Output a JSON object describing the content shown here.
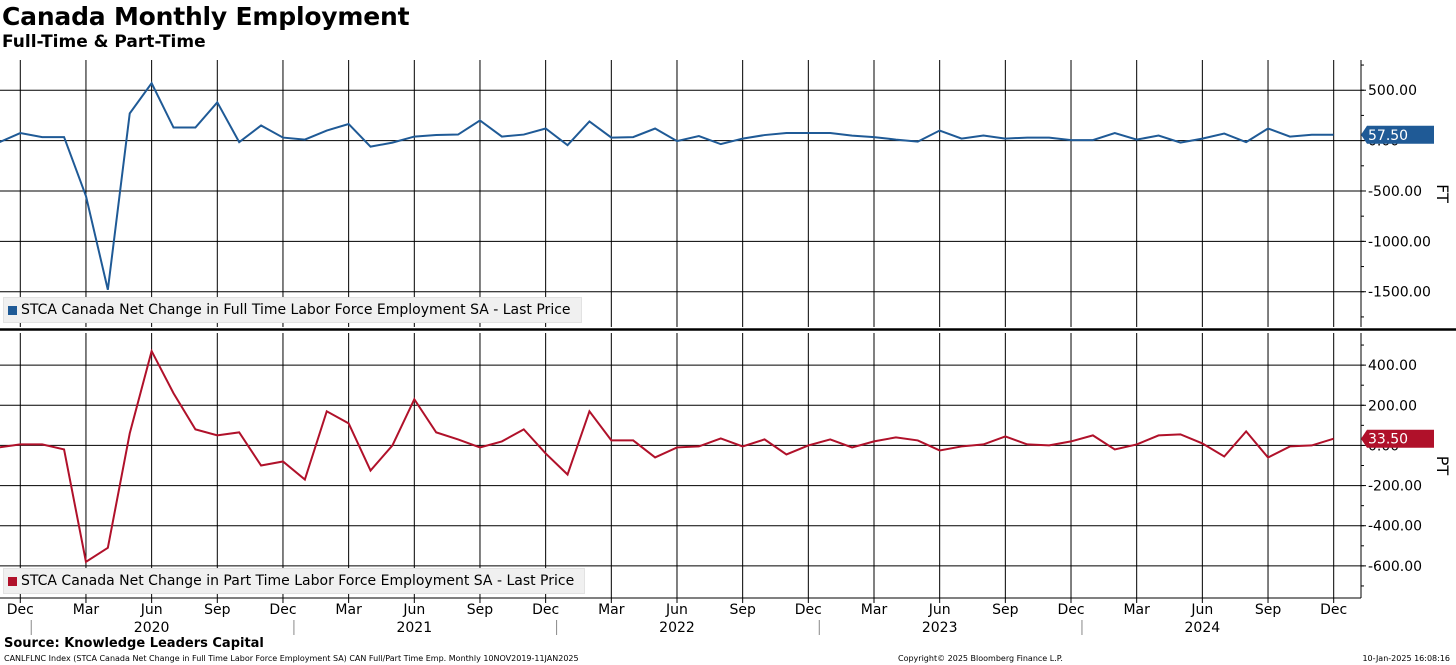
{
  "header": {
    "title": "Canada Monthly Employment",
    "subtitle": "Full-Time & Part-Time"
  },
  "footer": {
    "source": "Source: Knowledge Leaders Capital",
    "index_info": "CANLFLNC Index (STCA Canada Net Change in Full Time Labor Force Employment SA) CAN Full/Part Time Emp.  Monthly 10NOV2019-11JAN2025",
    "copyright": "Copyright© 2025 Bloomberg Finance L.P.",
    "timestamp": "10-Jan-2025 16:08:16"
  },
  "colors": {
    "full_time": "#1f5a96",
    "part_time": "#b0112a"
  },
  "chart_data": {
    "type": "line",
    "x": [
      "2019-11",
      "2019-12",
      "2020-01",
      "2020-02",
      "2020-03",
      "2020-04",
      "2020-05",
      "2020-06",
      "2020-07",
      "2020-08",
      "2020-09",
      "2020-10",
      "2020-11",
      "2020-12",
      "2021-01",
      "2021-02",
      "2021-03",
      "2021-04",
      "2021-05",
      "2021-06",
      "2021-07",
      "2021-08",
      "2021-09",
      "2021-10",
      "2021-11",
      "2021-12",
      "2022-01",
      "2022-02",
      "2022-03",
      "2022-04",
      "2022-05",
      "2022-06",
      "2022-07",
      "2022-08",
      "2022-09",
      "2022-10",
      "2022-11",
      "2022-12",
      "2023-01",
      "2023-02",
      "2023-03",
      "2023-04",
      "2023-05",
      "2023-06",
      "2023-07",
      "2023-08",
      "2023-09",
      "2023-10",
      "2023-11",
      "2023-12",
      "2024-01",
      "2024-02",
      "2024-03",
      "2024-04",
      "2024-05",
      "2024-06",
      "2024-07",
      "2024-08",
      "2024-09",
      "2024-10",
      "2024-11",
      "2024-12"
    ],
    "x_tick_labels": [
      "Dec",
      "Mar",
      "Jun",
      "Sep",
      "Dec",
      "Mar",
      "Jun",
      "Sep",
      "Dec",
      "Mar",
      "Jun",
      "Sep",
      "Dec",
      "Mar",
      "Jun",
      "Sep",
      "Dec",
      "Mar",
      "Jun",
      "Sep",
      "Dec"
    ],
    "x_tick_dates": [
      "2019-12",
      "2020-03",
      "2020-06",
      "2020-09",
      "2020-12",
      "2021-03",
      "2021-06",
      "2021-09",
      "2021-12",
      "2022-03",
      "2022-06",
      "2022-09",
      "2022-12",
      "2023-03",
      "2023-06",
      "2023-09",
      "2023-12",
      "2024-03",
      "2024-06",
      "2024-09",
      "2024-12"
    ],
    "year_labels": [
      "2020",
      "2021",
      "2022",
      "2023",
      "2024"
    ],
    "year_label_dates": [
      "2020-06",
      "2021-06",
      "2022-06",
      "2023-06",
      "2024-06"
    ],
    "panels": [
      {
        "id": "FT",
        "axis_label": "FT",
        "legend": "STCA Canada Net Change in Full Time Labor Force Employment SA - Last Price",
        "last_value": "57.50",
        "ylim": [
          -1850,
          800
        ],
        "yticks": [
          500,
          0,
          -500,
          -1000,
          -1500
        ],
        "ytick_labels": [
          "500.00",
          "0.00",
          "-500.00",
          "-1000.00",
          "-1500.00"
        ],
        "grid": true,
        "values": [
          -20,
          75,
          35,
          35,
          -550,
          -1480,
          270,
          570,
          130,
          130,
          380,
          -15,
          150,
          30,
          10,
          100,
          165,
          -60,
          -20,
          40,
          55,
          60,
          200,
          40,
          60,
          120,
          -45,
          190,
          30,
          35,
          120,
          -5,
          45,
          -35,
          20,
          55,
          75,
          75,
          75,
          50,
          35,
          10,
          -10,
          100,
          20,
          50,
          20,
          30,
          30,
          5,
          5,
          75,
          10,
          50,
          -20,
          20,
          70,
          -15,
          120,
          40,
          57.5,
          57.5
        ]
      },
      {
        "id": "PT",
        "axis_label": "PT",
        "legend": "STCA Canada Net Change in Part Time Labor Force Employment SA - Last Price",
        "last_value": "33.50",
        "ylim": [
          -760,
          560
        ],
        "yticks": [
          400,
          200,
          0,
          -200,
          -400,
          -600
        ],
        "ytick_labels": [
          "400.00",
          "200.00",
          "0.00",
          "-200.00",
          "-400.00",
          "-600.00"
        ],
        "grid": true,
        "values": [
          -10,
          5,
          5,
          -20,
          -580,
          -510,
          60,
          470,
          260,
          80,
          50,
          65,
          -100,
          -80,
          -170,
          170,
          110,
          -125,
          0,
          230,
          65,
          30,
          -10,
          20,
          80,
          -40,
          -145,
          170,
          25,
          25,
          -60,
          -10,
          -5,
          35,
          -5,
          30,
          -45,
          0,
          30,
          -10,
          20,
          40,
          25,
          -25,
          -5,
          5,
          45,
          5,
          0,
          20,
          50,
          -20,
          5,
          50,
          55,
          10,
          -55,
          70,
          -60,
          -5,
          0,
          33.5
        ]
      }
    ]
  }
}
